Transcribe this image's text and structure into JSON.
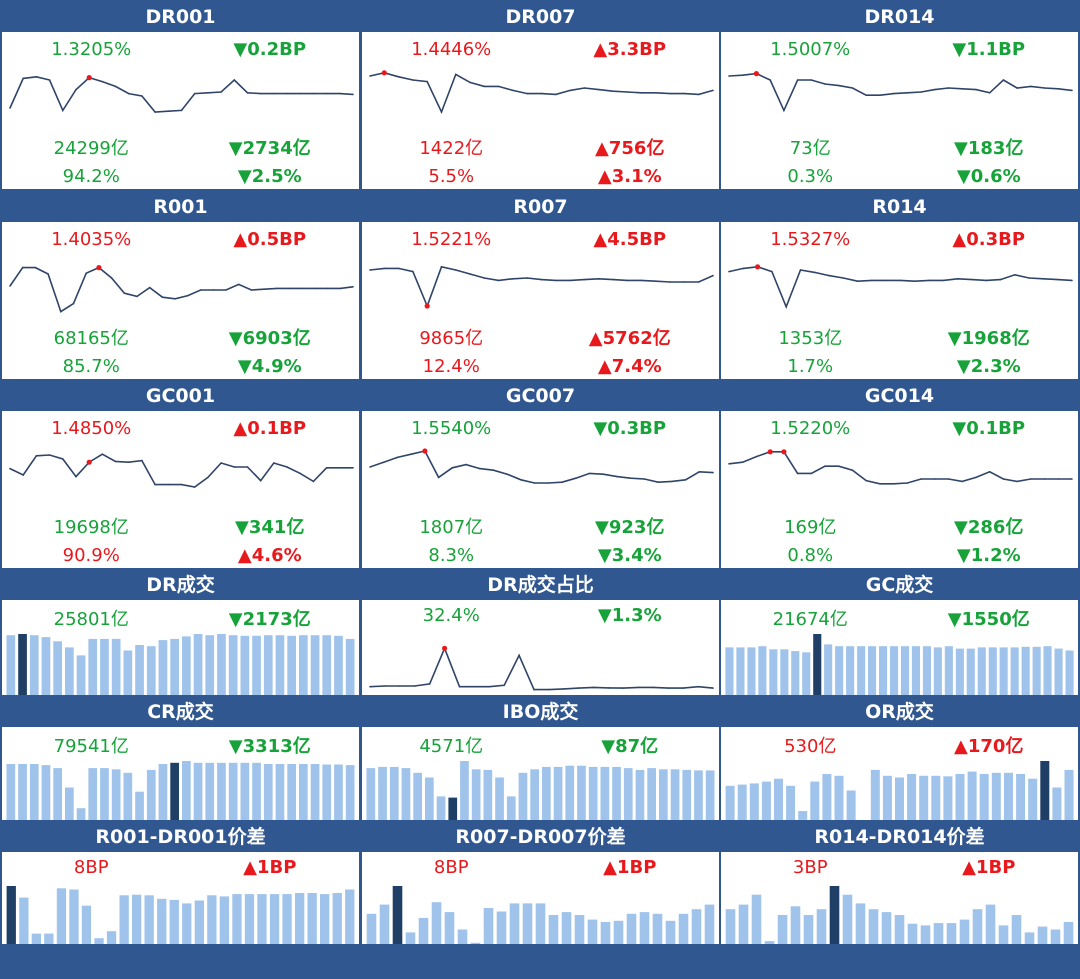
{
  "colors": {
    "header_bg": "#30578f",
    "up": "#e8191d",
    "down": "#17a33a",
    "line": "#2f4468",
    "bar": "#9fc3ea",
    "bar_highlight": "#1f3f66",
    "marker": "#e8191d"
  },
  "chart_data": [
    {
      "id": "dr001",
      "title": "DR001",
      "type": "line",
      "rate": "1.3205%",
      "rate_dir": "dn",
      "bp": "▼0.2BP",
      "bp_dir": "dn",
      "vol": "24299亿",
      "vol_dir": "dn",
      "volchg": "▼2734亿",
      "volchg_dir": "dn",
      "share": "94.2%",
      "share_dir": "dn",
      "sharechg": "▼2.5%",
      "sharechg_dir": "dn",
      "ylim": [
        1.0,
        1.8
      ],
      "marker_index": [
        6
      ],
      "values": [
        1.25,
        1.62,
        1.64,
        1.6,
        1.22,
        1.48,
        1.63,
        1.58,
        1.52,
        1.43,
        1.4,
        1.2,
        1.21,
        1.22,
        1.43,
        1.44,
        1.45,
        1.6,
        1.44,
        1.43,
        1.43,
        1.43,
        1.43,
        1.43,
        1.43,
        1.43,
        1.42
      ]
    },
    {
      "id": "dr007",
      "title": "DR007",
      "type": "line",
      "rate": "1.4446%",
      "rate_dir": "up",
      "bp": "▲3.3BP",
      "bp_dir": "up",
      "vol": "1422亿",
      "vol_dir": "up",
      "volchg": "▲756亿",
      "volchg_dir": "up",
      "share": "5.5%",
      "share_dir": "up",
      "sharechg": "▲3.1%",
      "sharechg_dir": "up",
      "ylim": [
        1.0,
        1.8
      ],
      "marker_index": [
        1
      ],
      "values": [
        1.65,
        1.69,
        1.64,
        1.6,
        1.58,
        1.2,
        1.67,
        1.57,
        1.52,
        1.52,
        1.47,
        1.43,
        1.43,
        1.42,
        1.47,
        1.5,
        1.48,
        1.46,
        1.45,
        1.44,
        1.44,
        1.43,
        1.43,
        1.42,
        1.47
      ]
    },
    {
      "id": "dr014",
      "title": "DR014",
      "type": "line",
      "rate": "1.5007%",
      "rate_dir": "dn",
      "bp": "▼1.1BP",
      "bp_dir": "dn",
      "vol": "73亿",
      "vol_dir": "dn",
      "volchg": "▼183亿",
      "volchg_dir": "dn",
      "share": "0.3%",
      "share_dir": "dn",
      "sharechg": "▼0.6%",
      "sharechg_dir": "dn",
      "ylim": [
        1.0,
        1.8
      ],
      "marker_index": [
        2
      ],
      "values": [
        1.65,
        1.66,
        1.68,
        1.6,
        1.22,
        1.6,
        1.6,
        1.55,
        1.53,
        1.5,
        1.41,
        1.41,
        1.43,
        1.44,
        1.45,
        1.48,
        1.5,
        1.49,
        1.48,
        1.44,
        1.6,
        1.5,
        1.52,
        1.5,
        1.49,
        1.47
      ]
    },
    {
      "id": "r001",
      "title": "R001",
      "type": "line",
      "rate": "1.4035%",
      "rate_dir": "up",
      "bp": "▲0.5BP",
      "bp_dir": "up",
      "vol": "68165亿",
      "vol_dir": "dn",
      "volchg": "▼6903亿",
      "volchg_dir": "dn",
      "share": "85.7%",
      "share_dir": "dn",
      "sharechg": "▼4.9%",
      "sharechg_dir": "dn",
      "ylim": [
        1.0,
        1.8
      ],
      "marker_index": [
        7
      ],
      "values": [
        1.4,
        1.63,
        1.63,
        1.55,
        1.08,
        1.18,
        1.56,
        1.63,
        1.5,
        1.31,
        1.27,
        1.38,
        1.26,
        1.24,
        1.28,
        1.35,
        1.35,
        1.35,
        1.42,
        1.35,
        1.36,
        1.37,
        1.37,
        1.37,
        1.37,
        1.37,
        1.37,
        1.39
      ]
    },
    {
      "id": "r007",
      "title": "R007",
      "type": "line",
      "rate": "1.5221%",
      "rate_dir": "up",
      "bp": "▲4.5BP",
      "bp_dir": "up",
      "vol": "9865亿",
      "vol_dir": "up",
      "volchg": "▲5762亿",
      "volchg_dir": "up",
      "share": "12.4%",
      "share_dir": "up",
      "sharechg": "▲7.4%",
      "sharechg_dir": "up",
      "ylim": [
        1.0,
        1.8
      ],
      "marker_index": [
        4
      ],
      "values": [
        1.6,
        1.62,
        1.62,
        1.58,
        1.15,
        1.64,
        1.6,
        1.55,
        1.5,
        1.47,
        1.49,
        1.5,
        1.48,
        1.47,
        1.47,
        1.48,
        1.49,
        1.48,
        1.47,
        1.47,
        1.46,
        1.45,
        1.45,
        1.45,
        1.53
      ]
    },
    {
      "id": "r014",
      "title": "R014",
      "type": "line",
      "rate": "1.5327%",
      "rate_dir": "up",
      "bp": "▲0.3BP",
      "bp_dir": "up",
      "vol": "1353亿",
      "vol_dir": "dn",
      "volchg": "▼1968亿",
      "volchg_dir": "dn",
      "share": "1.7%",
      "share_dir": "dn",
      "sharechg": "▼2.3%",
      "sharechg_dir": "dn",
      "ylim": [
        1.0,
        1.8
      ],
      "marker_index": [
        2
      ],
      "values": [
        1.58,
        1.62,
        1.64,
        1.58,
        1.14,
        1.6,
        1.57,
        1.53,
        1.5,
        1.46,
        1.47,
        1.47,
        1.47,
        1.46,
        1.47,
        1.47,
        1.49,
        1.48,
        1.47,
        1.48,
        1.54,
        1.5,
        1.49,
        1.48,
        1.47
      ]
    },
    {
      "id": "gc001",
      "title": "GC001",
      "type": "line",
      "rate": "1.4850%",
      "rate_dir": "up",
      "bp": "▲0.1BP",
      "bp_dir": "up",
      "vol": "19698亿",
      "vol_dir": "dn",
      "volchg": "▼341亿",
      "volchg_dir": "dn",
      "share": "90.9%",
      "share_dir": "up",
      "sharechg": "▲4.6%",
      "sharechg_dir": "up",
      "ylim": [
        1.0,
        1.8
      ],
      "marker_index": [
        6
      ],
      "values": [
        1.48,
        1.4,
        1.64,
        1.65,
        1.6,
        1.38,
        1.56,
        1.66,
        1.57,
        1.56,
        1.58,
        1.28,
        1.28,
        1.28,
        1.25,
        1.37,
        1.55,
        1.5,
        1.5,
        1.33,
        1.55,
        1.5,
        1.42,
        1.32,
        1.49,
        1.49,
        1.49
      ]
    },
    {
      "id": "gc007",
      "title": "GC007",
      "type": "line",
      "rate": "1.5540%",
      "rate_dir": "dn",
      "bp": "▼0.3BP",
      "bp_dir": "dn",
      "vol": "1807亿",
      "vol_dir": "dn",
      "volchg": "▼923亿",
      "volchg_dir": "dn",
      "share": "8.3%",
      "share_dir": "dn",
      "sharechg": "▼3.4%",
      "sharechg_dir": "dn",
      "ylim": [
        1.0,
        1.8
      ],
      "marker_index": [
        4
      ],
      "values": [
        1.5,
        1.56,
        1.62,
        1.66,
        1.7,
        1.37,
        1.49,
        1.53,
        1.48,
        1.46,
        1.41,
        1.34,
        1.3,
        1.3,
        1.31,
        1.36,
        1.42,
        1.41,
        1.38,
        1.36,
        1.35,
        1.31,
        1.32,
        1.34,
        1.44,
        1.43
      ]
    },
    {
      "id": "gc014",
      "title": "GC014",
      "type": "line",
      "rate": "1.5220%",
      "rate_dir": "dn",
      "bp": "▼0.1BP",
      "bp_dir": "dn",
      "vol": "169亿",
      "vol_dir": "dn",
      "volchg": "▼286亿",
      "volchg_dir": "dn",
      "share": "0.8%",
      "share_dir": "dn",
      "sharechg": "▼1.2%",
      "sharechg_dir": "dn",
      "ylim": [
        1.0,
        1.8
      ],
      "marker_index": [
        3,
        4
      ],
      "values": [
        1.54,
        1.56,
        1.63,
        1.69,
        1.69,
        1.42,
        1.42,
        1.51,
        1.51,
        1.46,
        1.33,
        1.29,
        1.29,
        1.3,
        1.35,
        1.35,
        1.35,
        1.32,
        1.37,
        1.44,
        1.35,
        1.32,
        1.35,
        1.35,
        1.35,
        1.35
      ]
    },
    {
      "id": "dr-vol",
      "title": "DR成交",
      "type": "bar",
      "main": "25801亿",
      "main_dir": "dn",
      "chg": "▼2173亿",
      "chg_dir": "dn",
      "ylim": [
        0,
        1
      ],
      "highlight_index": [
        1
      ],
      "values": [
        0.98,
        1.0,
        0.98,
        0.95,
        0.88,
        0.78,
        0.65,
        0.92,
        0.92,
        0.92,
        0.73,
        0.82,
        0.8,
        0.9,
        0.92,
        0.96,
        1.0,
        0.98,
        1.0,
        0.98,
        0.97,
        0.97,
        0.98,
        0.98,
        0.97,
        0.98,
        0.98,
        0.98,
        0.97,
        0.92
      ]
    },
    {
      "id": "dr-share",
      "title": "DR成交占比",
      "type": "line",
      "main": "32.4%",
      "main_dir": "dn",
      "chg": "▼1.3%",
      "chg_dir": "dn",
      "ylim": [
        0,
        40
      ],
      "marker_index": [
        5
      ],
      "values": [
        3,
        3.5,
        3.5,
        3.5,
        5,
        30,
        3,
        3,
        3,
        4,
        25,
        1,
        1,
        1.5,
        2,
        2.5,
        2.2,
        2,
        2.5,
        2.5,
        2,
        2,
        3,
        2
      ]
    },
    {
      "id": "gc-vol",
      "title": "GC成交",
      "type": "bar",
      "main": "21674亿",
      "main_dir": "dn",
      "chg": "▼1550亿",
      "chg_dir": "dn",
      "ylim": [
        0,
        1
      ],
      "highlight_index": [
        8
      ],
      "values": [
        0.78,
        0.78,
        0.78,
        0.8,
        0.75,
        0.75,
        0.72,
        0.7,
        1.0,
        0.83,
        0.8,
        0.8,
        0.8,
        0.8,
        0.8,
        0.8,
        0.8,
        0.8,
        0.8,
        0.78,
        0.8,
        0.76,
        0.76,
        0.78,
        0.78,
        0.78,
        0.78,
        0.79,
        0.79,
        0.8,
        0.76,
        0.73
      ]
    },
    {
      "id": "cr-vol",
      "title": "CR成交",
      "type": "bar",
      "main": "79541亿",
      "main_dir": "dn",
      "chg": "▼3313亿",
      "chg_dir": "dn",
      "ylim": [
        0,
        1
      ],
      "highlight_index": [
        14
      ],
      "values": [
        0.95,
        0.95,
        0.95,
        0.93,
        0.88,
        0.55,
        0.2,
        0.88,
        0.88,
        0.86,
        0.8,
        0.48,
        0.85,
        0.95,
        0.97,
        1.0,
        0.97,
        0.97,
        0.97,
        0.97,
        0.97,
        0.97,
        0.95,
        0.95,
        0.95,
        0.95,
        0.95,
        0.94,
        0.94,
        0.93
      ]
    },
    {
      "id": "ibo-vol",
      "title": "IBO成交",
      "type": "bar",
      "main": "4571亿",
      "main_dir": "dn",
      "chg": "▼87亿",
      "chg_dir": "dn",
      "ylim": [
        0,
        1
      ],
      "highlight_index": [
        7
      ],
      "values": [
        0.88,
        0.9,
        0.9,
        0.88,
        0.8,
        0.72,
        0.4,
        0.38,
        1.0,
        0.86,
        0.85,
        0.72,
        0.4,
        0.8,
        0.86,
        0.9,
        0.9,
        0.92,
        0.92,
        0.9,
        0.9,
        0.9,
        0.88,
        0.85,
        0.88,
        0.86,
        0.86,
        0.85,
        0.84,
        0.84
      ]
    },
    {
      "id": "or-vol",
      "title": "OR成交",
      "type": "bar",
      "main": "530亿",
      "main_dir": "up",
      "chg": "▲170亿",
      "chg_dir": "up",
      "ylim": [
        0,
        1
      ],
      "highlight_index": [
        26
      ],
      "values": [
        0.58,
        0.6,
        0.62,
        0.65,
        0.7,
        0.58,
        0.15,
        0.65,
        0.78,
        0.75,
        0.5,
        0.0,
        0.85,
        0.75,
        0.72,
        0.78,
        0.75,
        0.75,
        0.74,
        0.78,
        0.82,
        0.78,
        0.8,
        0.8,
        0.78,
        0.7,
        1.0,
        0.55,
        0.85
      ]
    },
    {
      "id": "r001-spread",
      "title": "R001-DR001价差",
      "type": "bar",
      "main": "8BP",
      "main_dir": "up",
      "chg": "▲1BP",
      "chg_dir": "up",
      "ylim": [
        0,
        1
      ],
      "highlight_index": [
        0
      ],
      "values": [
        1.0,
        0.8,
        0.18,
        0.18,
        0.96,
        0.94,
        0.66,
        0.1,
        0.22,
        0.84,
        0.85,
        0.84,
        0.78,
        0.76,
        0.7,
        0.75,
        0.84,
        0.82,
        0.86,
        0.86,
        0.86,
        0.86,
        0.86,
        0.88,
        0.88,
        0.86,
        0.88,
        0.94
      ]
    },
    {
      "id": "r007-spread",
      "title": "R007-DR007价差",
      "type": "bar",
      "main": "8BP",
      "main_dir": "up",
      "chg": "▲1BP",
      "chg_dir": "up",
      "ylim": [
        0,
        1
      ],
      "highlight_index": [
        2
      ],
      "values": [
        0.52,
        0.68,
        1.0,
        0.2,
        0.45,
        0.72,
        0.55,
        0.25,
        0.02,
        0.62,
        0.56,
        0.7,
        0.7,
        0.7,
        0.5,
        0.55,
        0.5,
        0.42,
        0.38,
        0.4,
        0.52,
        0.55,
        0.52,
        0.4,
        0.52,
        0.6,
        0.68
      ]
    },
    {
      "id": "r014-spread",
      "title": "R014-DR014价差",
      "type": "bar",
      "main": "3BP",
      "main_dir": "up",
      "chg": "▲1BP",
      "chg_dir": "up",
      "ylim": [
        0,
        1
      ],
      "highlight_index": [
        8
      ],
      "values": [
        0.6,
        0.68,
        0.85,
        0.05,
        0.5,
        0.65,
        0.5,
        0.6,
        1.0,
        0.85,
        0.7,
        0.6,
        0.55,
        0.5,
        0.35,
        0.32,
        0.36,
        0.36,
        0.42,
        0.6,
        0.68,
        0.32,
        0.5,
        0.2,
        0.3,
        0.25,
        0.38
      ]
    }
  ]
}
